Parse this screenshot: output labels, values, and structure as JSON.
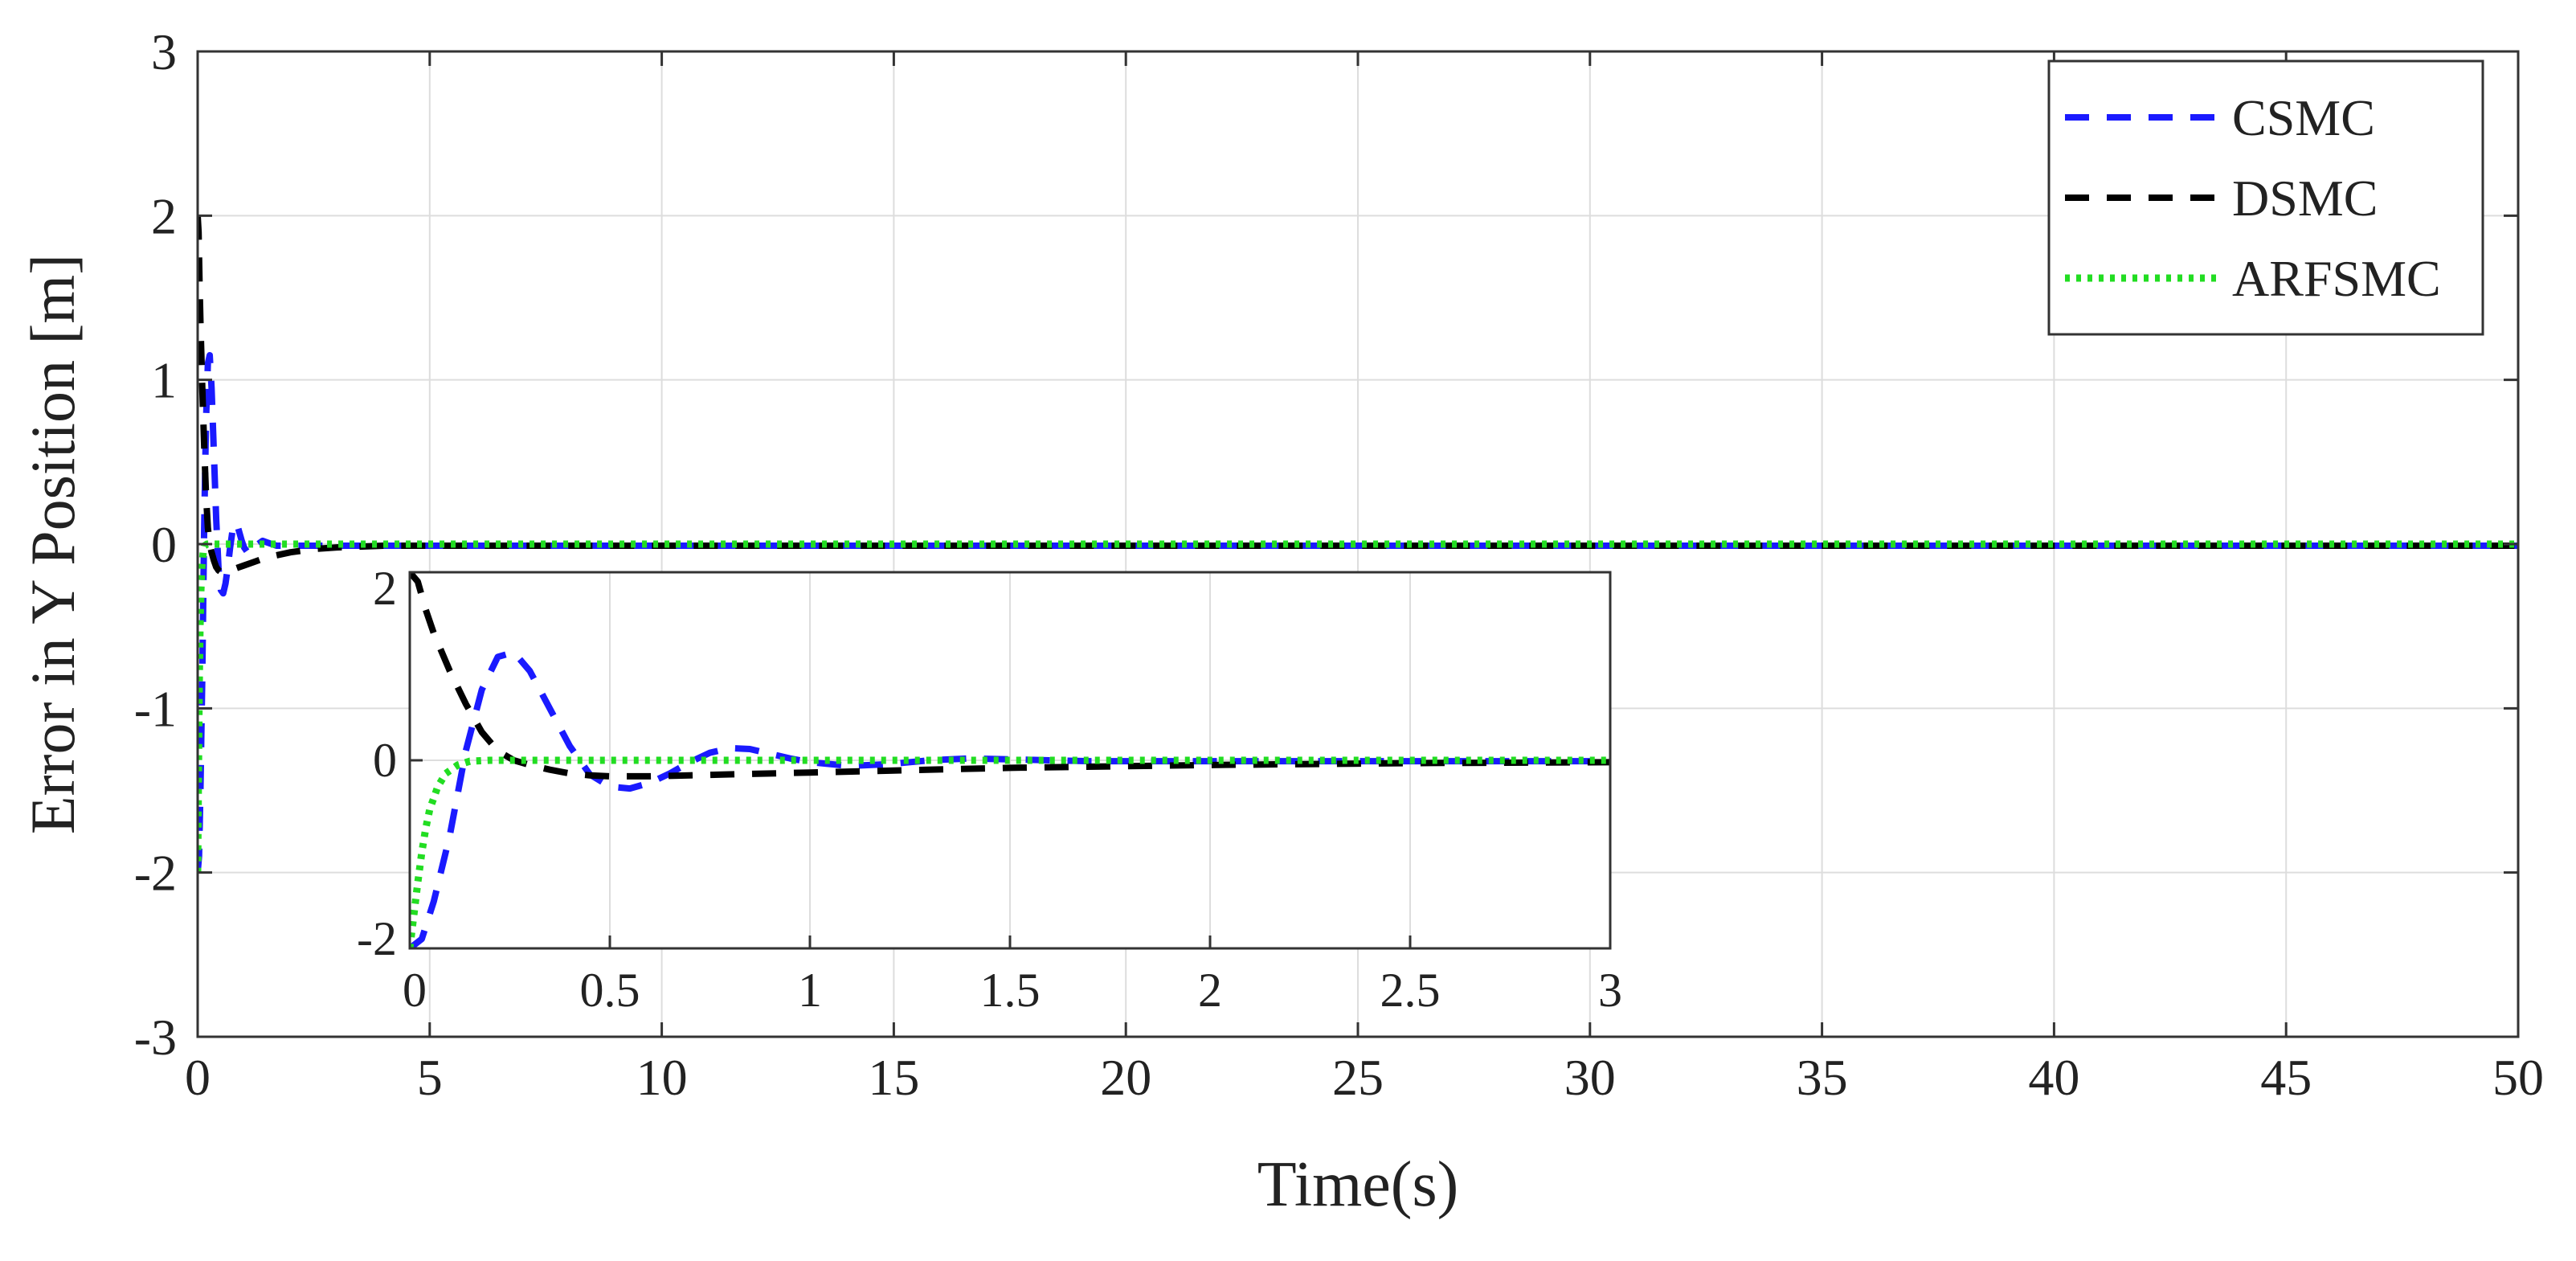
{
  "chart_data": [
    {
      "type": "line",
      "title": "",
      "xlabel": "Time(s)",
      "ylabel": "Error in Y Position [m]",
      "xlim": [
        0,
        50
      ],
      "ylim": [
        -3,
        3
      ],
      "xticks": [
        "0",
        "5",
        "10",
        "15",
        "20",
        "25",
        "30",
        "35",
        "40",
        "45",
        "50"
      ],
      "yticks": [
        "-3",
        "-2",
        "-1",
        "0",
        "1",
        "2",
        "3"
      ],
      "grid": true,
      "legend_position": "top-right",
      "series": [
        {
          "name": "CSMC",
          "color": "#1a1aff",
          "style": "dashed",
          "x": [
            0,
            0.03,
            0.06,
            0.1,
            0.14,
            0.18,
            0.22,
            0.26,
            0.3,
            0.35,
            0.4,
            0.45,
            0.5,
            0.55,
            0.6,
            0.65,
            0.7,
            0.75,
            0.8,
            0.85,
            0.9,
            0.95,
            1.0,
            1.1,
            1.2,
            1.3,
            1.4,
            1.5,
            1.7,
            2.0,
            2.3,
            2.6,
            3.0,
            4,
            6,
            10,
            20,
            30,
            40,
            50
          ],
          "y": [
            -2.0,
            -1.9,
            -1.5,
            -0.8,
            0.1,
            0.75,
            1.1,
            1.15,
            0.95,
            0.55,
            0.15,
            -0.15,
            -0.28,
            -0.3,
            -0.24,
            -0.14,
            -0.02,
            0.08,
            0.13,
            0.12,
            0.07,
            0.02,
            -0.02,
            -0.06,
            -0.04,
            0.0,
            0.02,
            0.01,
            -0.01,
            -0.01,
            -0.01,
            -0.01,
            -0.01,
            -0.01,
            -0.01,
            -0.01,
            -0.01,
            -0.01,
            -0.01,
            -0.01
          ]
        },
        {
          "name": "DSMC",
          "color": "#000000",
          "style": "dashed",
          "x": [
            0,
            0.02,
            0.04,
            0.06,
            0.1,
            0.14,
            0.18,
            0.22,
            0.26,
            0.3,
            0.35,
            0.4,
            0.45,
            0.5,
            0.6,
            0.7,
            0.8,
            1.0,
            1.2,
            1.5,
            2.0,
            2.5,
            3.0,
            4,
            6,
            10,
            20,
            30,
            40,
            50
          ],
          "y": [
            2.0,
            1.9,
            1.6,
            1.35,
            0.95,
            0.6,
            0.3,
            0.1,
            0.0,
            -0.05,
            -0.1,
            -0.14,
            -0.16,
            -0.17,
            -0.17,
            -0.16,
            -0.15,
            -0.13,
            -0.11,
            -0.08,
            -0.05,
            -0.03,
            -0.02,
            -0.01,
            -0.01,
            -0.01,
            -0.01,
            -0.01,
            -0.01,
            -0.01
          ]
        },
        {
          "name": "ARFSMC",
          "color": "#22dd22",
          "style": "dotted",
          "x": [
            0,
            0.01,
            0.02,
            0.03,
            0.04,
            0.05,
            0.07,
            0.09,
            0.12,
            0.15,
            0.2,
            0.3,
            0.5,
            1.0,
            2,
            5,
            10,
            20,
            30,
            40,
            50
          ],
          "y": [
            -2.0,
            -1.65,
            -1.3,
            -0.98,
            -0.72,
            -0.52,
            -0.28,
            -0.14,
            -0.05,
            -0.01,
            0.0,
            0.0,
            0.0,
            0.0,
            0.0,
            0.0,
            0.0,
            0.0,
            0.0,
            0.0,
            0.0
          ]
        }
      ]
    },
    {
      "type": "line",
      "title": "",
      "xlabel": "",
      "ylabel": "",
      "xlim": [
        0,
        3
      ],
      "ylim": [
        -2,
        2
      ],
      "xticks": [
        "0",
        "0.5",
        "1",
        "1.5",
        "2",
        "2.5",
        "3"
      ],
      "yticks": [
        "-2",
        "0",
        "2"
      ],
      "grid": true,
      "series_ref": "same as main chart, zoomed to 0–3 s"
    }
  ]
}
